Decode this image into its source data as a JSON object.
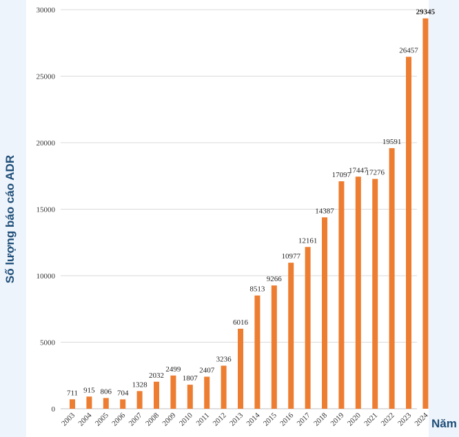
{
  "chart_data": {
    "type": "bar",
    "ylabel": "Số lượng báo cáo ADR",
    "xlabel": "Năm",
    "ylim": [
      0,
      30000
    ],
    "yticks": [
      "0",
      "5000",
      "10000",
      "15000",
      "20000",
      "25000",
      "30000"
    ],
    "categories": [
      "2003",
      "2004",
      "2005",
      "2006",
      "2007",
      "2008",
      "2009",
      "2010",
      "2011",
      "2012",
      "2013",
      "2014",
      "2015",
      "2016",
      "2017",
      "2018",
      "2019",
      "2020",
      "2021",
      "2022",
      "2023",
      "2024"
    ],
    "values": [
      711,
      915,
      806,
      704,
      1328,
      2032,
      2499,
      1807,
      2407,
      3236,
      6016,
      8513,
      9266,
      10977,
      12161,
      14387,
      17097,
      17447,
      17276,
      19591,
      26457,
      29345
    ],
    "value_labels": [
      "711",
      "915",
      "806",
      "704",
      "1328",
      "2032",
      "2499",
      "1807",
      "2407",
      "3236",
      "6016",
      "8513",
      "9266",
      "10977",
      "12161",
      "14387",
      "17097",
      "17447",
      "17276",
      "19591",
      "26457",
      "29345"
    ],
    "bar_color": "#ed7d31",
    "grid": true,
    "legend": "none"
  }
}
